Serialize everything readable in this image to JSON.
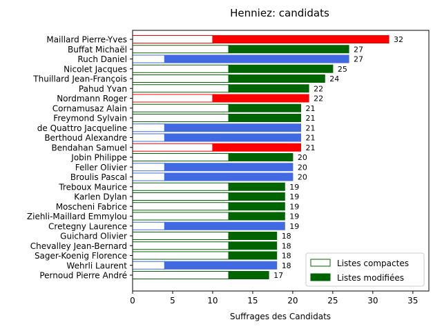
{
  "chart_data": {
    "type": "bar",
    "orientation": "horizontal",
    "stacked": true,
    "title": "Henniez: candidats",
    "xlabel": "Suffrages des Candidats",
    "ylabel": "",
    "xlim": [
      0,
      37
    ],
    "xticks": [
      0,
      5,
      10,
      15,
      20,
      25,
      30,
      35
    ],
    "grid": false,
    "legend_position": "bottom-right",
    "legend": [
      {
        "label": "Listes compactes",
        "style": "outline",
        "color": "#006400"
      },
      {
        "label": "Listes modifiées",
        "style": "filled",
        "color": "#006400"
      }
    ],
    "categories": [
      "Maillard Pierre-Yves",
      "Buffat Michaël",
      "Ruch Daniel",
      "Nicolet Jacques",
      "Thuillard Jean-François",
      "Pahud Yvan",
      "Nordmann Roger",
      "Cornamusaz Alain",
      "Freymond Sylvain",
      "de Quattro Jacqueline",
      "Berthoud Alexandre",
      "Bendahan Samuel",
      "Jobin Philippe",
      "Feller Olivier",
      "Broulis Pascal",
      "Treboux Maurice",
      "Karlen Dylan",
      "Moscheni Fabrice",
      "Ziehli-Maillard Emmylou",
      "Cretegny Laurence",
      "Guichard Olivier",
      "Chevalley Jean-Bernard",
      "Sager-Koenig Florence",
      "Wehrli Laurent",
      "Pernoud Pierre André"
    ],
    "series": [
      {
        "name": "Listes compactes",
        "values": [
          10,
          12,
          4,
          12,
          12,
          12,
          10,
          12,
          12,
          4,
          4,
          10,
          12,
          4,
          4,
          12,
          12,
          12,
          12,
          4,
          12,
          12,
          12,
          4,
          12
        ]
      },
      {
        "name": "Listes modifiées",
        "values": [
          22,
          15,
          23,
          13,
          12,
          10,
          12,
          9,
          9,
          17,
          17,
          11,
          8,
          16,
          16,
          7,
          7,
          7,
          7,
          15,
          6,
          6,
          6,
          14,
          5
        ]
      }
    ],
    "totals": [
      32,
      27,
      27,
      25,
      24,
      22,
      22,
      21,
      21,
      21,
      21,
      21,
      20,
      20,
      20,
      19,
      19,
      19,
      19,
      19,
      18,
      18,
      18,
      18,
      17
    ],
    "colors": [
      "#ff0000",
      "#006400",
      "#4169e1",
      "#006400",
      "#006400",
      "#006400",
      "#ff0000",
      "#006400",
      "#006400",
      "#4169e1",
      "#4169e1",
      "#ff0000",
      "#006400",
      "#4169e1",
      "#4169e1",
      "#006400",
      "#006400",
      "#006400",
      "#006400",
      "#4169e1",
      "#006400",
      "#006400",
      "#006400",
      "#4169e1",
      "#006400"
    ]
  }
}
